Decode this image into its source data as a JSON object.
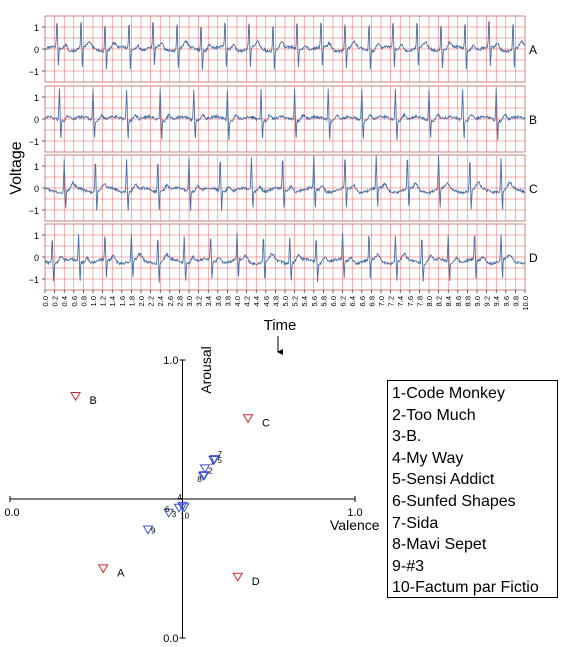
{
  "chart_data": [
    {
      "type": "line",
      "title": "",
      "ylabel": "Voltage",
      "xlabel": "Time",
      "xlim": [
        0.0,
        10.0
      ],
      "x_ticks": [
        "0.0",
        "0.2",
        "0.4",
        "0.6",
        "0.8",
        "1.0",
        "1.2",
        "1.4",
        "1.6",
        "1.8",
        "2.0",
        "2.2",
        "2.4",
        "2.6",
        "2.8",
        "3.0",
        "3.2",
        "3.4",
        "3.6",
        "3.8",
        "4.0",
        "4.2",
        "4.4",
        "4.6",
        "4.8",
        "5.0",
        "5.2",
        "5.4",
        "5.6",
        "5.8",
        "6.0",
        "6.2",
        "6.4",
        "6.6",
        "6.8",
        "7.0",
        "7.2",
        "7.4",
        "7.6",
        "7.8",
        "8.0",
        "8.2",
        "8.4",
        "8.6",
        "8.8",
        "9.0",
        "9.2",
        "9.4",
        "9.6",
        "9.8",
        "10.0"
      ],
      "y_ticks": [
        "1",
        "0",
        "−1"
      ],
      "ylim": [
        -1.5,
        1.5
      ],
      "grid": true,
      "grid_color": "#e53935",
      "line_color": "#4a6fa5",
      "series": [
        {
          "name": "A",
          "peaks": [
            0.25,
            0.75,
            1.25,
            1.75,
            2.25,
            2.75,
            3.25,
            3.75,
            4.25,
            4.75,
            5.25,
            5.75,
            6.25,
            6.75,
            7.25,
            7.75,
            8.25,
            8.75,
            9.25,
            9.75
          ],
          "peak_value": 1.3,
          "baseline": 0.0
        },
        {
          "name": "B",
          "peaks": [
            0.3,
            1.0,
            1.7,
            2.4,
            3.1,
            3.8,
            4.5,
            5.2,
            5.9,
            6.6,
            7.3,
            8.0,
            8.7,
            9.4
          ],
          "peak_value": 1.4,
          "baseline": 0.0
        },
        {
          "name": "C",
          "peaks": [
            0.4,
            1.05,
            1.7,
            2.35,
            3.0,
            3.65,
            4.3,
            4.95,
            5.6,
            6.25,
            6.9,
            7.55,
            8.2,
            8.85,
            9.5
          ],
          "peak_value": 1.5,
          "baseline": -0.1
        },
        {
          "name": "D",
          "peaks": [
            0.15,
            0.7,
            1.25,
            1.8,
            2.35,
            2.9,
            3.45,
            4.0,
            4.55,
            5.1,
            5.65,
            6.2,
            6.75,
            7.3,
            7.85,
            8.4,
            8.95,
            9.5
          ],
          "peak_value": 1.2,
          "baseline": -0.2
        }
      ]
    },
    {
      "type": "scatter",
      "title": "",
      "xlabel": "Valence",
      "ylabel": "Arousal",
      "xlim": [
        0.0,
        1.0
      ],
      "ylim": [
        0.0,
        1.0
      ],
      "x_tick_labels": [
        "0.0",
        "1.0"
      ],
      "y_tick_labels": [
        "0.0",
        "1.0"
      ],
      "reference_points": {
        "color": "#d62728",
        "points": [
          {
            "label": "A",
            "x": 0.27,
            "y": 0.25
          },
          {
            "label": "B",
            "x": 0.19,
            "y": 0.87
          },
          {
            "label": "C",
            "x": 0.69,
            "y": 0.79
          },
          {
            "label": "D",
            "x": 0.66,
            "y": 0.22
          }
        ]
      },
      "songs": {
        "color": "#3b4fd1",
        "points": [
          {
            "label": "1",
            "x": 0.565,
            "y": 0.61
          },
          {
            "label": "2",
            "x": 0.563,
            "y": 0.585
          },
          {
            "label": "3",
            "x": 0.46,
            "y": 0.45
          },
          {
            "label": "4",
            "x": 0.5,
            "y": 0.475
          },
          {
            "label": "5",
            "x": 0.59,
            "y": 0.64
          },
          {
            "label": "6",
            "x": 0.49,
            "y": 0.468
          },
          {
            "label": "7",
            "x": 0.593,
            "y": 0.643
          },
          {
            "label": "8",
            "x": 0.56,
            "y": 0.583
          },
          {
            "label": "9",
            "x": 0.4,
            "y": 0.39
          },
          {
            "label": "10",
            "x": 0.505,
            "y": 0.47
          }
        ]
      },
      "legend": {
        "position": "right",
        "items": [
          "1-Code Monkey",
          "2-Too Much",
          "3-B.",
          "4-My Way",
          "5-Sensi Addict",
          "6-Sunfed Shapes",
          "7-Sida",
          "8-Mavi Sepet",
          "9-#3",
          "10-Factum par Fictio"
        ]
      }
    }
  ]
}
